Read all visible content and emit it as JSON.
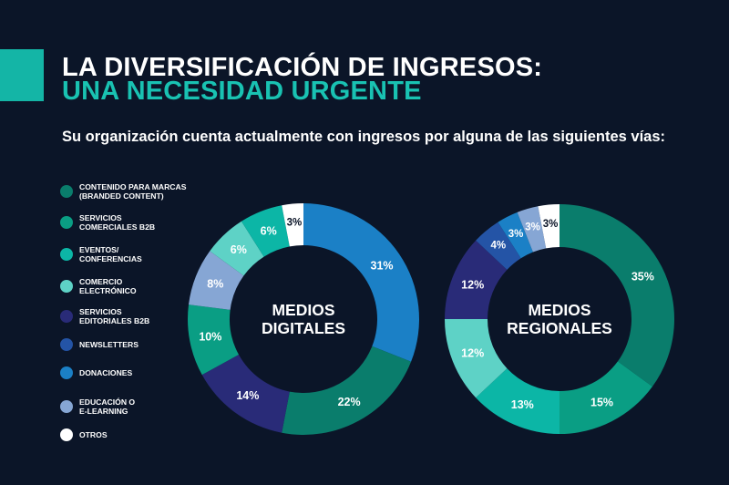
{
  "header": {
    "title_line1": "LA DIVERSIFICACIÓN DE INGRESOS:",
    "title_line2": "UNA NECESIDAD URGENTE",
    "question": "Su organización cuenta actualmente con ingresos por alguna de las siguientes vías:"
  },
  "colors": {
    "background": "#0b1528",
    "accent": "#19c2b2"
  },
  "chart_data": [
    {
      "type": "pie",
      "title": "MEDIOS DIGITALES",
      "title_lines": [
        "MEDIOS",
        "DIGITALES"
      ],
      "categories": [
        "DONACIONES",
        "CONTENIDO PARA MARCAS (BRANDED CONTENT)",
        "SERVICIOS EDITORIALES B2B",
        "SERVICIOS COMERCIALES B2B",
        "EDUCACIÓN O E-LEARNING",
        "COMERCIO ELECTRÓNICO",
        "EVENTOS/ CONFERENCIAS",
        "OTROS"
      ],
      "values": [
        31,
        22,
        14,
        10,
        8,
        6,
        6,
        3
      ],
      "labels": [
        "31%",
        "22%",
        "14%",
        "10%",
        "8%",
        "6%",
        "6%",
        "3%"
      ],
      "colors": [
        "#1b80c6",
        "#0a7d6c",
        "#292b78",
        "#0a9e84",
        "#86a6d4",
        "#5ed2c6",
        "#0cb6a6",
        "#ffffff"
      ]
    },
    {
      "type": "pie",
      "title": "MEDIOS REGIONALES",
      "title_lines": [
        "MEDIOS",
        "REGIONALES"
      ],
      "categories": [
        "CONTENIDO PARA MARCAS (BRANDED CONTENT)",
        "SERVICIOS COMERCIALES B2B",
        "EVENTOS/ CONFERENCIAS",
        "COMERCIO ELECTRÓNICO",
        "SERVICIOS EDITORIALES B2B",
        "NEWSLETTERS",
        "DONACIONES",
        "EDUCACIÓN O E-LEARNING",
        "OTROS"
      ],
      "values": [
        35,
        15,
        13,
        12,
        12,
        4,
        3,
        3,
        3
      ],
      "labels": [
        "35%",
        "15%",
        "13%",
        "12%",
        "12%",
        "4%",
        "3%",
        "3%",
        "3%"
      ],
      "colors": [
        "#0a7d6c",
        "#0a9e84",
        "#0cb6a6",
        "#5ed2c6",
        "#292b78",
        "#2454a6",
        "#1b80c6",
        "#86a6d4",
        "#ffffff"
      ]
    }
  ],
  "legend": [
    {
      "label": "CONTENIDO PARA MARCAS\n(BRANDED CONTENT)",
      "color": "#0a7d6c"
    },
    {
      "label": "SERVICIOS\nCOMERCIALES B2B",
      "color": "#0a9e84"
    },
    {
      "label": "EVENTOS/\nCONFERENCIAS",
      "color": "#0cb6a6"
    },
    {
      "label": "COMERCIO\nELECTRÓNICO",
      "color": "#5ed2c6"
    },
    {
      "label": "SERVICIOS\nEDITORIALES B2B",
      "color": "#292b78"
    },
    {
      "label": "NEWSLETTERS",
      "color": "#2454a6"
    },
    {
      "label": "DONACIONES",
      "color": "#1b80c6"
    },
    {
      "label": "EDUCACIÓN O\nE-LEARNING",
      "color": "#86a6d4"
    },
    {
      "label": "OTROS",
      "color": "#ffffff"
    }
  ]
}
